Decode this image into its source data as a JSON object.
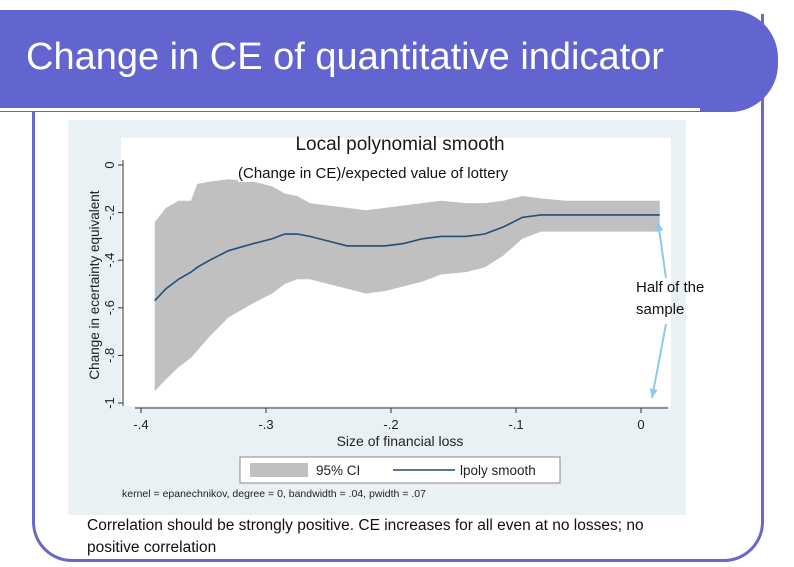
{
  "slide": {
    "title": "Change in CE of quantitative indicator",
    "subtitle_note": "(Change in CE)/expected value of lottery",
    "side_note": "Half of the sample",
    "caption": "Correlation should be strongly positive. CE increases for all even at no losses; no positive correlation"
  },
  "colors": {
    "title_bar": "#6264cf",
    "ci_band": "#c0c0c0",
    "line": "#1f4e79",
    "panel": "#eaf1f4",
    "arrow": "#8ec8ea"
  },
  "chart_data": {
    "type": "line",
    "title": "Local polynomial smooth",
    "xlabel": "Size of financial loss",
    "ylabel": "Change in ecertainty equivalent",
    "xlim": [
      -0.4,
      0.02
    ],
    "ylim": [
      -1,
      0
    ],
    "xticks": [
      -0.4,
      -0.3,
      -0.2,
      -0.1,
      0
    ],
    "xtick_labels": [
      "-.4",
      "-.3",
      "-.2",
      "-.1",
      "0"
    ],
    "yticks": [
      -1,
      -0.8,
      -0.6,
      -0.4,
      -0.2,
      0
    ],
    "ytick_labels": [
      "-1",
      "-.8",
      "-.6",
      "-.4",
      "-.2",
      "0"
    ],
    "grid": false,
    "legend": {
      "placement": "bottom",
      "entries": [
        "95% CI",
        "lpoly smooth"
      ]
    },
    "note": "kernel = epanechnikov, degree = 0, bandwidth = .04, pwidth = .07",
    "series": [
      {
        "name": "lpoly smooth",
        "x": [
          -0.389,
          -0.38,
          -0.37,
          -0.36,
          -0.355,
          -0.345,
          -0.33,
          -0.31,
          -0.295,
          -0.285,
          -0.275,
          -0.265,
          -0.25,
          -0.235,
          -0.22,
          -0.205,
          -0.19,
          -0.175,
          -0.16,
          -0.14,
          -0.125,
          -0.11,
          -0.095,
          -0.08,
          -0.06,
          -0.04,
          -0.02,
          0,
          0.015
        ],
        "y": [
          -0.57,
          -0.52,
          -0.48,
          -0.45,
          -0.43,
          -0.4,
          -0.36,
          -0.33,
          -0.31,
          -0.29,
          -0.29,
          -0.3,
          -0.32,
          -0.34,
          -0.34,
          -0.34,
          -0.33,
          -0.31,
          -0.3,
          -0.3,
          -0.29,
          -0.26,
          -0.22,
          -0.21,
          -0.21,
          -0.21,
          -0.21,
          -0.21,
          -0.21
        ]
      }
    ],
    "ci_band": {
      "name": "95% CI",
      "x": [
        -0.389,
        -0.38,
        -0.37,
        -0.36,
        -0.355,
        -0.345,
        -0.33,
        -0.31,
        -0.295,
        -0.285,
        -0.275,
        -0.265,
        -0.25,
        -0.235,
        -0.22,
        -0.205,
        -0.19,
        -0.175,
        -0.16,
        -0.14,
        -0.125,
        -0.11,
        -0.095,
        -0.08,
        -0.06,
        -0.04,
        -0.02,
        0,
        0.015
      ],
      "upper": [
        -0.24,
        -0.18,
        -0.15,
        -0.15,
        -0.08,
        -0.07,
        -0.06,
        -0.07,
        -0.09,
        -0.12,
        -0.13,
        -0.16,
        -0.17,
        -0.18,
        -0.19,
        -0.18,
        -0.17,
        -0.16,
        -0.15,
        -0.16,
        -0.16,
        -0.15,
        -0.13,
        -0.14,
        -0.15,
        -0.15,
        -0.15,
        -0.15,
        -0.15
      ],
      "lower": [
        -0.95,
        -0.9,
        -0.85,
        -0.81,
        -0.78,
        -0.72,
        -0.64,
        -0.58,
        -0.54,
        -0.5,
        -0.48,
        -0.48,
        -0.5,
        -0.52,
        -0.54,
        -0.53,
        -0.51,
        -0.49,
        -0.46,
        -0.45,
        -0.43,
        -0.38,
        -0.31,
        -0.28,
        -0.28,
        -0.28,
        -0.28,
        -0.28,
        -0.28
      ]
    }
  }
}
